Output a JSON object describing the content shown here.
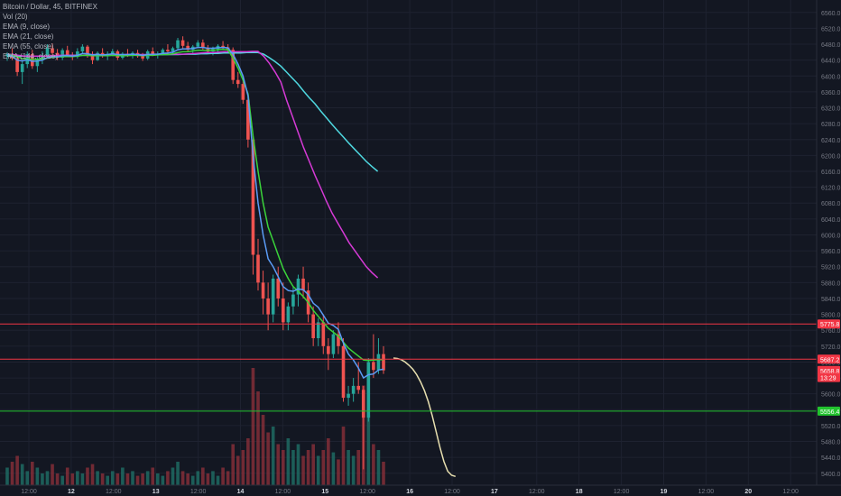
{
  "header": {
    "symbol": "Bitcoin / Dollar, 45, BITFINEX",
    "indicators": [
      "Vol (20)",
      "EMA (9, close)",
      "EMA (21, close)",
      "EMA (55, close)",
      "EMA (144, close)"
    ]
  },
  "chart_data": {
    "type": "candlestick",
    "title": "Bitcoin / Dollar, 45, BITFINEX",
    "ylim": [
      5370,
      6580
    ],
    "y_ticks": [
      5400,
      5440,
      5480,
      5520,
      5560,
      5600,
      5640,
      5680,
      5720,
      5760,
      5800,
      5840,
      5880,
      5920,
      5960,
      6000,
      6040,
      6080,
      6120,
      6160,
      6200,
      6240,
      6280,
      6320,
      6360,
      6400,
      6440,
      6480,
      6520,
      6560
    ],
    "x_ticks": [
      "12:00",
      "12",
      "12:00",
      "13",
      "12:00",
      "14",
      "12:00",
      "15",
      "12:00",
      "16",
      "12:00",
      "17",
      "12:00",
      "18",
      "12:00",
      "19",
      "12:00",
      "20",
      "12:00"
    ],
    "grid": true,
    "price_lines": [
      {
        "label": "5775.8",
        "value": 5775.8,
        "color": "#f23645"
      },
      {
        "label": "5687.2",
        "value": 5687.2,
        "color": "#f23645"
      },
      {
        "label": "5556.4",
        "value": 5556.4,
        "color": "#22c32e"
      }
    ],
    "price_tags": [
      {
        "label": "5658.8",
        "value": 5658.8,
        "color": "#f23645"
      },
      {
        "label": "13:29",
        "value": 5641,
        "color": "#f23645"
      }
    ],
    "ema_colors": {
      "ema9": "#5b9cf6",
      "ema21": "#3ad33a",
      "ema55": "#d63ad6",
      "ema144": "#4fd8e0",
      "projection": "#e8e0b0"
    },
    "candles": [
      [
        6450,
        6460,
        6438,
        6455
      ],
      [
        6455,
        6470,
        6440,
        6445
      ],
      [
        6445,
        6452,
        6400,
        6410
      ],
      [
        6410,
        6440,
        6380,
        6430
      ],
      [
        6430,
        6462,
        6420,
        6455
      ],
      [
        6455,
        6466,
        6418,
        6425
      ],
      [
        6425,
        6448,
        6410,
        6440
      ],
      [
        6440,
        6462,
        6430,
        6450
      ],
      [
        6450,
        6480,
        6445,
        6470
      ],
      [
        6470,
        6482,
        6450,
        6458
      ],
      [
        6458,
        6468,
        6440,
        6446
      ],
      [
        6446,
        6470,
        6440,
        6465
      ],
      [
        6465,
        6476,
        6448,
        6452
      ],
      [
        6452,
        6460,
        6440,
        6448
      ],
      [
        6448,
        6470,
        6444,
        6462
      ],
      [
        6462,
        6480,
        6458,
        6474
      ],
      [
        6474,
        6478,
        6446,
        6452
      ],
      [
        6452,
        6462,
        6430,
        6440
      ],
      [
        6440,
        6462,
        6438,
        6458
      ],
      [
        6458,
        6470,
        6446,
        6450
      ],
      [
        6450,
        6462,
        6440,
        6456
      ],
      [
        6456,
        6468,
        6450,
        6462
      ],
      [
        6462,
        6466,
        6440,
        6446
      ],
      [
        6446,
        6460,
        6442,
        6456
      ],
      [
        6456,
        6468,
        6448,
        6452
      ],
      [
        6452,
        6462,
        6444,
        6458
      ],
      [
        6458,
        6466,
        6446,
        6450
      ],
      [
        6450,
        6458,
        6438,
        6444
      ],
      [
        6444,
        6466,
        6440,
        6462
      ],
      [
        6462,
        6472,
        6450,
        6454
      ],
      [
        6454,
        6462,
        6444,
        6456
      ],
      [
        6456,
        6470,
        6452,
        6466
      ],
      [
        6466,
        6480,
        6458,
        6462
      ],
      [
        6462,
        6474,
        6455,
        6470
      ],
      [
        6470,
        6496,
        6465,
        6490
      ],
      [
        6490,
        6500,
        6470,
        6476
      ],
      [
        6476,
        6486,
        6460,
        6466
      ],
      [
        6466,
        6478,
        6458,
        6474
      ],
      [
        6474,
        6490,
        6470,
        6484
      ],
      [
        6484,
        6492,
        6466,
        6470
      ],
      [
        6470,
        6478,
        6456,
        6462
      ],
      [
        6462,
        6474,
        6452,
        6468
      ],
      [
        6468,
        6480,
        6460,
        6476
      ],
      [
        6476,
        6488,
        6466,
        6472
      ],
      [
        6472,
        6480,
        6460,
        6466
      ],
      [
        6466,
        6472,
        6380,
        6390
      ],
      [
        6390,
        6410,
        6370,
        6380
      ],
      [
        6380,
        6396,
        6330,
        6340
      ],
      [
        6340,
        6350,
        6220,
        6240
      ],
      [
        6240,
        6250,
        5900,
        5950
      ],
      [
        5950,
        5990,
        5860,
        5880
      ],
      [
        5880,
        5910,
        5800,
        5840
      ],
      [
        5840,
        5880,
        5760,
        5800
      ],
      [
        5800,
        5900,
        5780,
        5890
      ],
      [
        5890,
        5920,
        5820,
        5840
      ],
      [
        5840,
        5880,
        5760,
        5780
      ],
      [
        5780,
        5830,
        5760,
        5820
      ],
      [
        5820,
        5870,
        5800,
        5850
      ],
      [
        5850,
        5900,
        5820,
        5890
      ],
      [
        5890,
        5920,
        5840,
        5860
      ],
      [
        5860,
        5880,
        5780,
        5800
      ],
      [
        5800,
        5820,
        5720,
        5740
      ],
      [
        5740,
        5790,
        5720,
        5780
      ],
      [
        5780,
        5800,
        5700,
        5720
      ],
      [
        5720,
        5740,
        5660,
        5700
      ],
      [
        5700,
        5760,
        5690,
        5750
      ],
      [
        5750,
        5780,
        5700,
        5720
      ],
      [
        5720,
        5740,
        5580,
        5590
      ],
      [
        5590,
        5620,
        5570,
        5600
      ],
      [
        5600,
        5640,
        5580,
        5620
      ],
      [
        5620,
        5680,
        5600,
        5610
      ],
      [
        5610,
        5620,
        5410,
        5540
      ],
      [
        5540,
        5690,
        5530,
        5680
      ],
      [
        5680,
        5750,
        5640,
        5660
      ],
      [
        5660,
        5740,
        5650,
        5700
      ],
      [
        5700,
        5720,
        5650,
        5659
      ]
    ],
    "volumes": [
      0.15,
      0.2,
      0.25,
      0.18,
      0.12,
      0.2,
      0.15,
      0.1,
      0.12,
      0.18,
      0.1,
      0.08,
      0.15,
      0.1,
      0.12,
      0.1,
      0.15,
      0.18,
      0.12,
      0.1,
      0.08,
      0.12,
      0.1,
      0.15,
      0.1,
      0.12,
      0.08,
      0.1,
      0.12,
      0.15,
      0.1,
      0.08,
      0.12,
      0.15,
      0.2,
      0.12,
      0.1,
      0.08,
      0.12,
      0.15,
      0.1,
      0.12,
      0.08,
      0.15,
      0.12,
      0.35,
      0.25,
      0.3,
      0.4,
      1.0,
      0.8,
      0.6,
      0.45,
      0.5,
      0.35,
      0.3,
      0.4,
      0.3,
      0.35,
      0.25,
      0.3,
      0.35,
      0.25,
      0.3,
      0.4,
      0.28,
      0.22,
      0.5,
      0.3,
      0.25,
      0.3,
      0.85,
      0.6,
      0.35,
      0.3,
      0.2
    ],
    "ema144": [
      6450,
      6450,
      6450,
      6450,
      6450,
      6450,
      6450,
      6450,
      6450,
      6450,
      6452,
      6452,
      6452,
      6452,
      6452,
      6452,
      6452,
      6452,
      6452,
      6453,
      6453,
      6453,
      6453,
      6453,
      6453,
      6453,
      6453,
      6454,
      6454,
      6454,
      6454,
      6455,
      6455,
      6455,
      6456,
      6456,
      6457,
      6457,
      6458,
      6458,
      6458,
      6458,
      6459,
      6459,
      6459,
      6455,
      6446,
      6436,
      6425,
      6410,
      6395,
      6380,
      6362,
      6345,
      6330,
      6312,
      6295,
      6278,
      6262,
      6246,
      6230,
      6215,
      6200,
      6185,
      6172,
      6160
    ],
    "ema55": [
      6455,
      6454,
      6452,
      6450,
      6450,
      6450,
      6450,
      6450,
      6451,
      6452,
      6452,
      6452,
      6452,
      6452,
      6453,
      6454,
      6454,
      6453,
      6453,
      6453,
      6453,
      6454,
      6454,
      6454,
      6454,
      6454,
      6454,
      6454,
      6455,
      6455,
      6455,
      6455,
      6456,
      6457,
      6458,
      6459,
      6459,
      6460,
      6461,
      6461,
      6461,
      6461,
      6461,
      6462,
      6462,
      6450,
      6432,
      6410,
      6385,
      6340,
      6300,
      6260,
      6220,
      6185,
      6150,
      6118,
      6085,
      6055,
      6030,
      6005,
      5980,
      5960,
      5940,
      5920,
      5905,
      5892
    ],
    "ema21": [
      6455,
      6452,
      6448,
      6444,
      6443,
      6442,
      6442,
      6443,
      6445,
      6447,
      6448,
      6449,
      6449,
      6449,
      6450,
      6452,
      6452,
      6451,
      6451,
      6451,
      6451,
      6452,
      6451,
      6451,
      6451,
      6452,
      6452,
      6451,
      6452,
      6452,
      6453,
      6454,
      6454,
      6456,
      6459,
      6461,
      6461,
      6463,
      6465,
      6465,
      6465,
      6465,
      6466,
      6467,
      6466,
      6445,
      6420,
      6390,
      6355,
      6250,
      6160,
      6080,
      6020,
      5985,
      5950,
      5915,
      5890,
      5870,
      5858,
      5845,
      5830,
      5810,
      5795,
      5780,
      5765,
      5755,
      5745,
      5730,
      5715,
      5705,
      5695,
      5685,
      5684,
      5685,
      5686,
      5686
    ],
    "ema9": [
      6455,
      6450,
      6440,
      6438,
      6441,
      6437,
      6438,
      6440,
      6446,
      6449,
      6448,
      6451,
      6451,
      6450,
      6452,
      6457,
      6456,
      6453,
      6454,
      6453,
      6454,
      6456,
      6454,
      6454,
      6454,
      6455,
      6454,
      6452,
      6454,
      6455,
      6455,
      6457,
      6458,
      6460,
      6466,
      6468,
      6468,
      6469,
      6472,
      6472,
      6470,
      6470,
      6471,
      6472,
      6471,
      6455,
      6430,
      6400,
      6350,
      6200,
      6080,
      6000,
      5940,
      5920,
      5895,
      5870,
      5860,
      5858,
      5864,
      5862,
      5850,
      5828,
      5818,
      5798,
      5778,
      5772,
      5762,
      5728,
      5700,
      5685,
      5665,
      5640,
      5648,
      5650,
      5660,
      5662
    ],
    "projection": [
      5690,
      5689,
      5686,
      5680,
      5672,
      5662,
      5648,
      5630,
      5608,
      5580,
      5545,
      5505,
      5465,
      5430,
      5405,
      5395,
      5392
    ]
  }
}
